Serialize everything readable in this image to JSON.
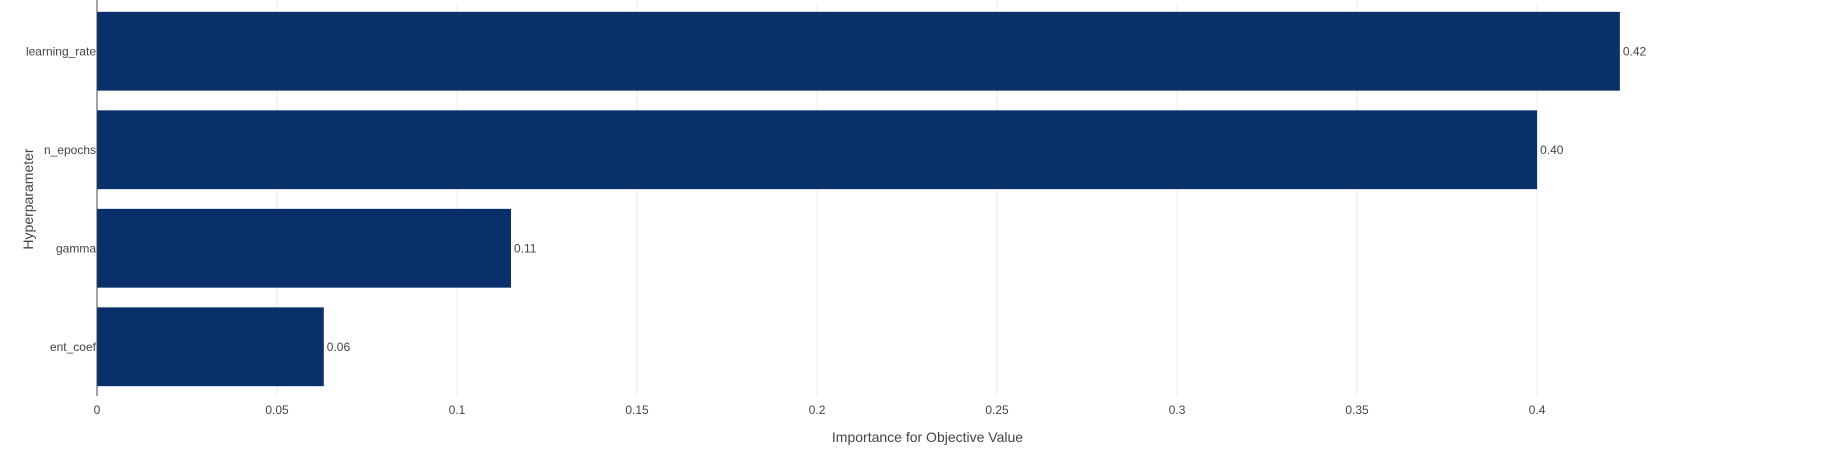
{
  "chart_data": {
    "type": "bar",
    "orientation": "horizontal",
    "categories": [
      "learning_rate",
      "n_epochs",
      "gamma",
      "ent_coef"
    ],
    "values": [
      0.423,
      0.4,
      0.115,
      0.063
    ],
    "value_labels": [
      "0.42",
      "0.40",
      "0.11",
      "0.06"
    ],
    "xlabel": "Importance for Objective Value",
    "ylabel": "Hyperparameter",
    "xlim": [
      0,
      0.4722
    ],
    "xticks": [
      0,
      0.05,
      0.1,
      0.15,
      0.2,
      0.25,
      0.3,
      0.35,
      0.4
    ],
    "xtick_labels": [
      "0",
      "0.05",
      "0.1",
      "0.15",
      "0.2",
      "0.25",
      "0.3",
      "0.35",
      "0.4"
    ],
    "grid": true,
    "bar_color": "#0a306b"
  }
}
